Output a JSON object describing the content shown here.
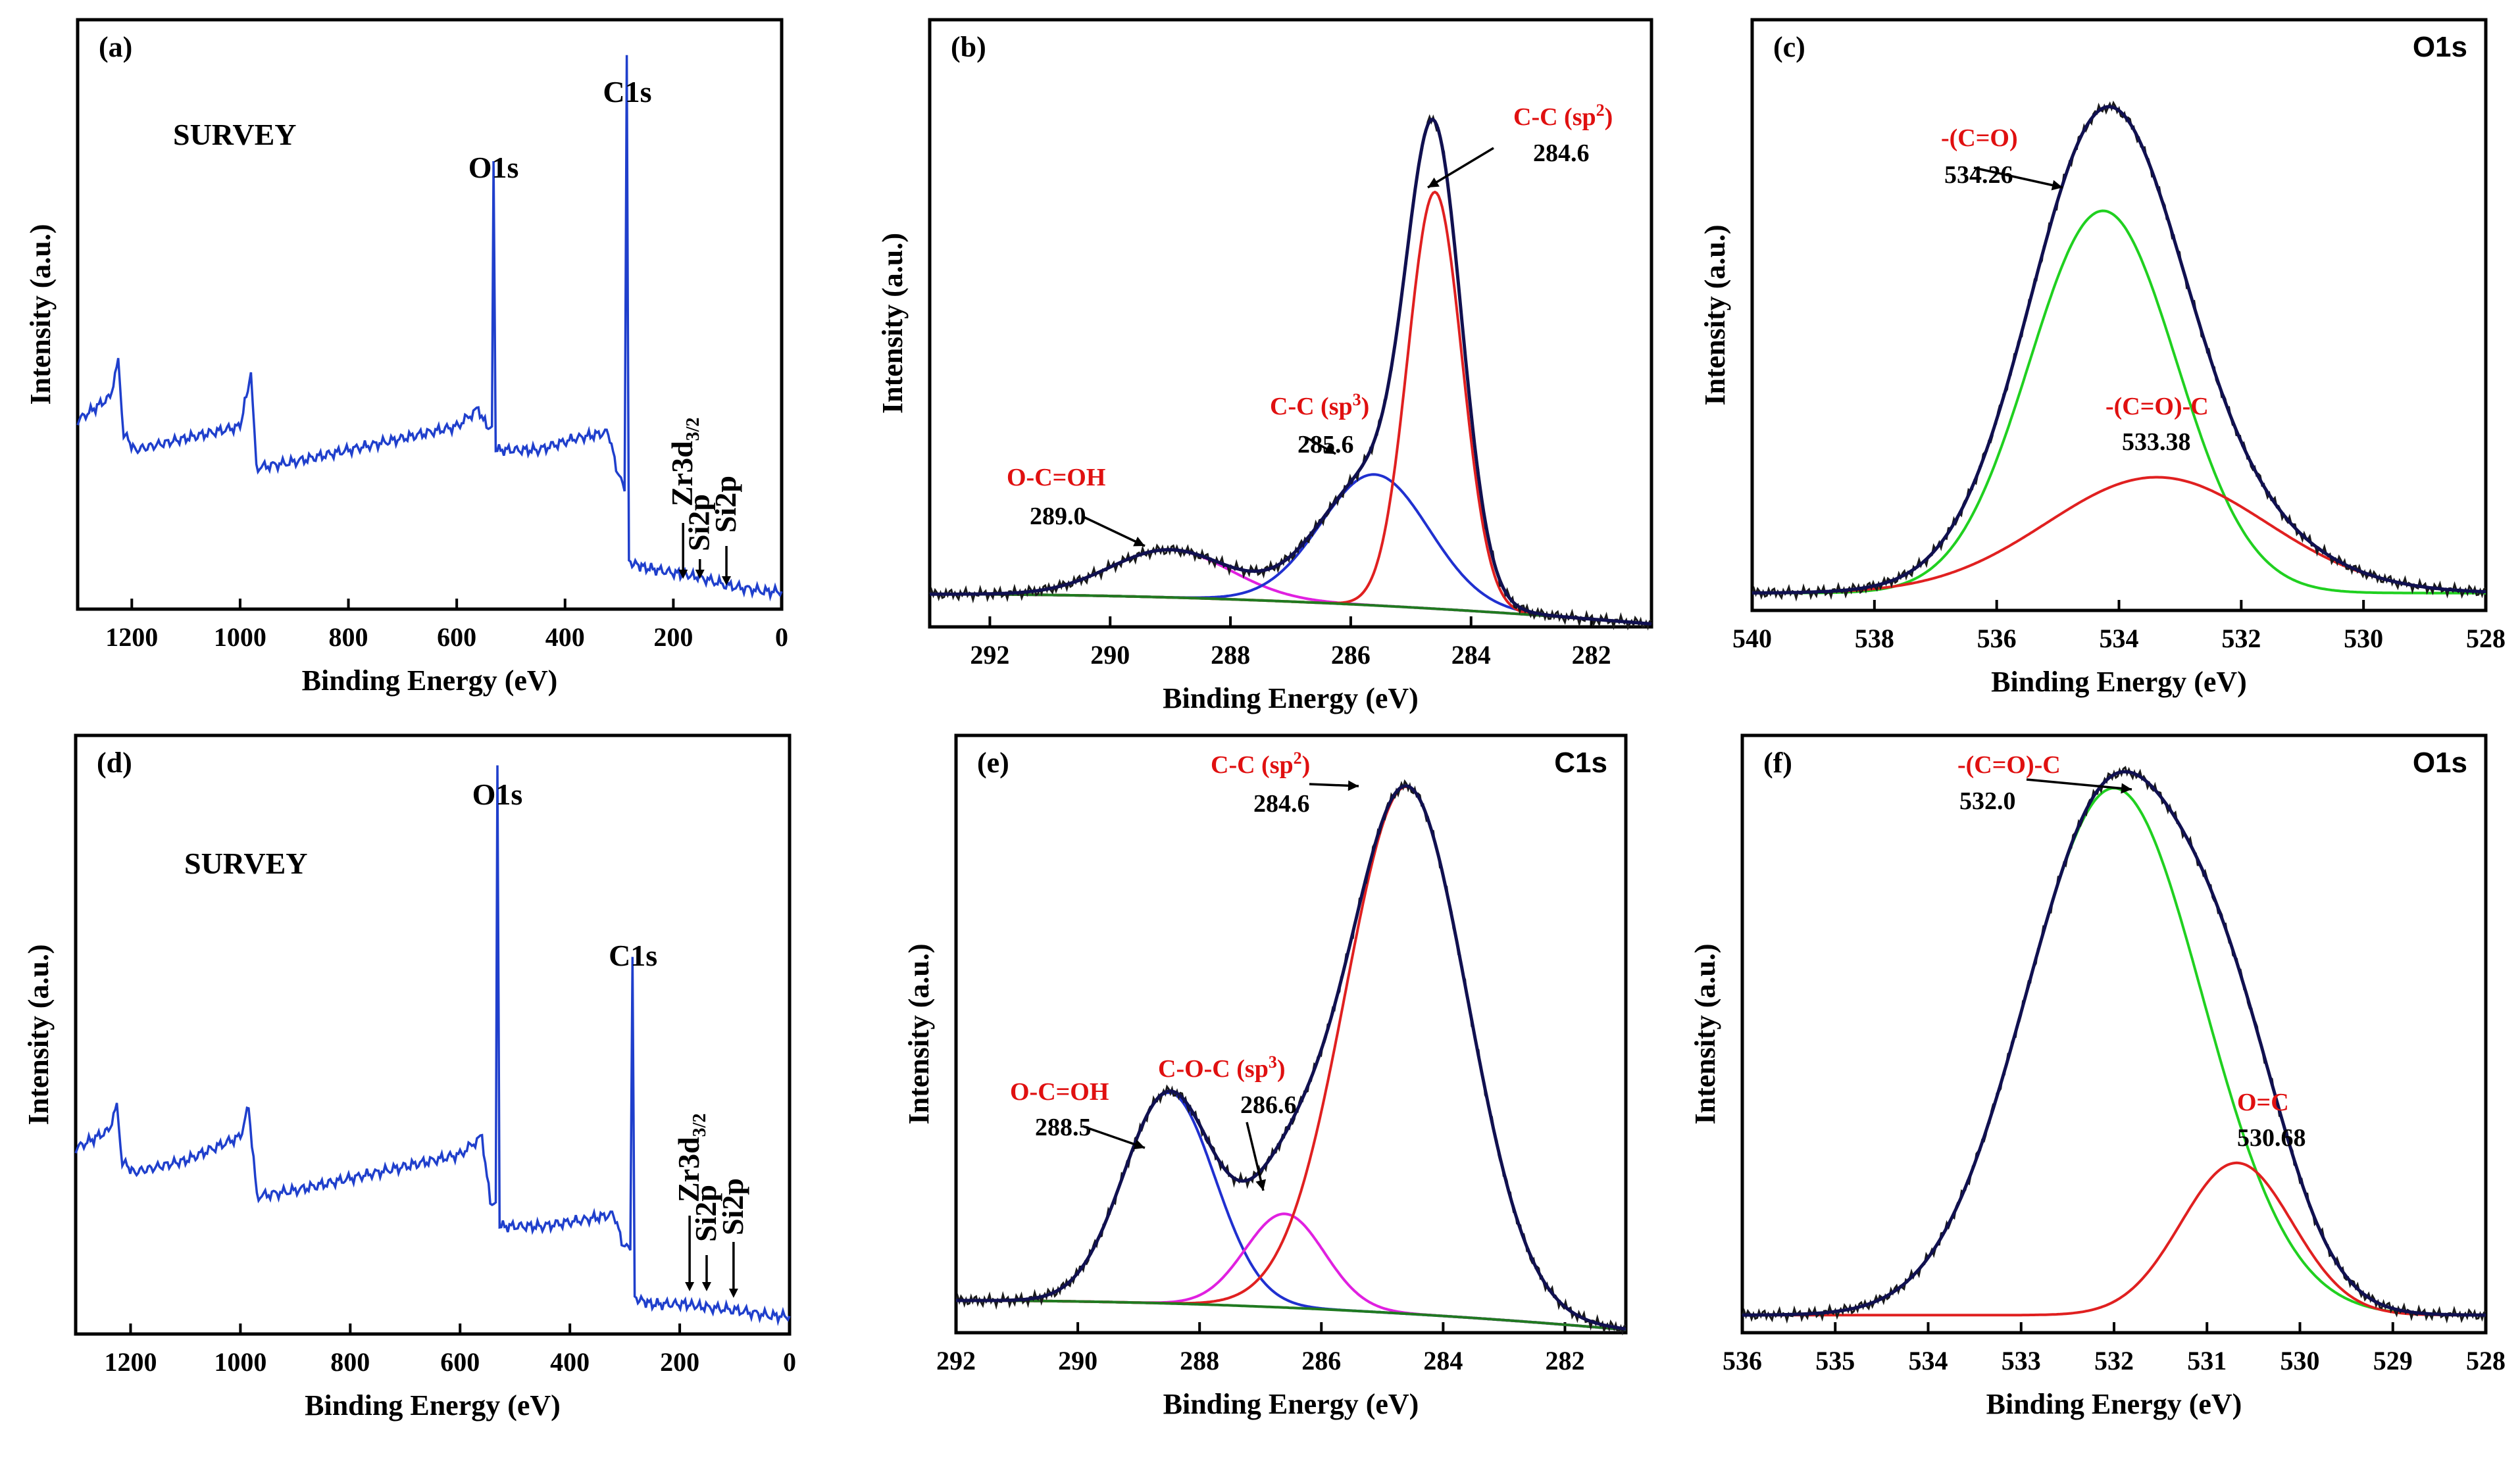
{
  "chart_data": [
    {
      "id": "a",
      "type": "line",
      "panel_label": "(a)",
      "title": "SURVEY",
      "xlabel": "Binding Energy (eV)",
      "ylabel": "Intensity (a.u.)",
      "xlim": [
        1300,
        0
      ],
      "xticks": [
        1200,
        1000,
        800,
        600,
        400,
        200,
        0
      ],
      "series": [
        {
          "name": "survey",
          "color": "#1f3fcc",
          "points": [
            [
              1300,
              0.32
            ],
            [
              1240,
              0.36
            ],
            [
              1225,
              0.42
            ],
            [
              1215,
              0.3
            ],
            [
              1195,
              0.27
            ],
            [
              1100,
              0.29
            ],
            [
              1000,
              0.31
            ],
            [
              980,
              0.4
            ],
            [
              970,
              0.24
            ],
            [
              900,
              0.25
            ],
            [
              800,
              0.27
            ],
            [
              700,
              0.29
            ],
            [
              600,
              0.31
            ],
            [
              560,
              0.34
            ],
            [
              545,
              0.31
            ],
            [
              535,
              0.31
            ],
            [
              532,
              0.76
            ],
            [
              528,
              0.27
            ],
            [
              450,
              0.27
            ],
            [
              380,
              0.29
            ],
            [
              320,
              0.3
            ],
            [
              300,
              0.22
            ],
            [
              290,
              0.2
            ],
            [
              286,
              0.94
            ],
            [
              282,
              0.08
            ],
            [
              250,
              0.07
            ],
            [
              190,
              0.06
            ],
            [
              155,
              0.055
            ],
            [
              100,
              0.04
            ],
            [
              30,
              0.03
            ],
            [
              0,
              0.03
            ]
          ]
        }
      ],
      "annotations": [
        {
          "text": "O1s",
          "x": 532
        },
        {
          "text": "C1s",
          "x": 285
        },
        {
          "text": "Zr3d",
          "sub": "3/2",
          "x": 182
        },
        {
          "text": "Si2p",
          "x": 151
        },
        {
          "text": "Si2p",
          "x": 102
        }
      ]
    },
    {
      "id": "b",
      "type": "line",
      "panel_label": "(b)",
      "title": "",
      "xlabel": "Binding Energy (eV)",
      "ylabel": "Intensity (a.u.)",
      "xlim": [
        293,
        281
      ],
      "xticks": [
        292,
        290,
        288,
        286,
        284,
        282
      ],
      "components": [
        {
          "name": "measured",
          "color": "#101050",
          "type": "envelope"
        },
        {
          "name": "O-C=OH",
          "center": 289.0,
          "amp": 0.08,
          "sigma": 1.0,
          "color": "#e020e0"
        },
        {
          "name": "C-C (sp3)",
          "center": 285.6,
          "amp": 0.22,
          "sigma": 0.9,
          "color": "#2030d0"
        },
        {
          "name": "C-C (sp2)",
          "center": 284.6,
          "amp": 0.7,
          "sigma": 0.45,
          "color": "#e02020"
        },
        {
          "name": "background",
          "color": "#207a20",
          "type": "background"
        }
      ],
      "annotations": [
        {
          "label": "C-C (sp",
          "sup": "2",
          "tail": ")",
          "value": "284.6"
        },
        {
          "label": "C-C (sp",
          "sup": "3",
          "tail": ")",
          "value": "285.6"
        },
        {
          "label": "O-C=OH",
          "value": "289.0"
        }
      ]
    },
    {
      "id": "c",
      "type": "line",
      "panel_label": "(c)",
      "title": "O1s",
      "xlabel": "Binding Energy (eV)",
      "ylabel": "Intensity (a.u.)",
      "xlim": [
        540,
        528
      ],
      "xticks": [
        540,
        538,
        536,
        534,
        532,
        530,
        528
      ],
      "components": [
        {
          "name": "measured",
          "color": "#101050",
          "type": "envelope"
        },
        {
          "name": "-(C=O)",
          "center": 534.26,
          "amp": 0.66,
          "sigma": 1.2,
          "color": "#20d020"
        },
        {
          "name": "-(C=O)-C",
          "center": 533.38,
          "amp": 0.2,
          "sigma": 1.8,
          "color": "#e02020"
        }
      ],
      "annotations": [
        {
          "label": "-(C=O)",
          "value": "534.26"
        },
        {
          "label": "-(C=O)-C",
          "value": "533.38"
        }
      ]
    },
    {
      "id": "d",
      "type": "line",
      "panel_label": "(d)",
      "title": "SURVEY",
      "xlabel": "Binding Energy (eV)",
      "ylabel": "Intensity (a.u.)",
      "xlim": [
        1300,
        0
      ],
      "xticks": [
        1200,
        1000,
        800,
        600,
        400,
        200,
        0
      ],
      "series": [
        {
          "name": "survey",
          "color": "#1f3fcc",
          "points": [
            [
              1300,
              0.31
            ],
            [
              1240,
              0.34
            ],
            [
              1225,
              0.38
            ],
            [
              1215,
              0.29
            ],
            [
              1195,
              0.27
            ],
            [
              1100,
              0.29
            ],
            [
              1000,
              0.33
            ],
            [
              985,
              0.38
            ],
            [
              970,
              0.23
            ],
            [
              900,
              0.24
            ],
            [
              800,
              0.26
            ],
            [
              700,
              0.28
            ],
            [
              600,
              0.3
            ],
            [
              560,
              0.33
            ],
            [
              545,
              0.22
            ],
            [
              535,
              0.22
            ],
            [
              532,
              0.95
            ],
            [
              528,
              0.18
            ],
            [
              450,
              0.18
            ],
            [
              380,
              0.19
            ],
            [
              320,
              0.2
            ],
            [
              300,
              0.14
            ],
            [
              290,
              0.14
            ],
            [
              286,
              0.63
            ],
            [
              282,
              0.06
            ],
            [
              250,
              0.05
            ],
            [
              190,
              0.05
            ],
            [
              155,
              0.045
            ],
            [
              100,
              0.04
            ],
            [
              30,
              0.03
            ],
            [
              0,
              0.03
            ]
          ]
        }
      ],
      "annotations": [
        {
          "text": "O1s",
          "x": 532
        },
        {
          "text": "C1s",
          "x": 285
        },
        {
          "text": "Zr3d",
          "sub": "3/2",
          "x": 182
        },
        {
          "text": "Si2p",
          "x": 151
        },
        {
          "text": "Si2p",
          "x": 102
        }
      ]
    },
    {
      "id": "e",
      "type": "line",
      "panel_label": "(e)",
      "title": "C1s",
      "xlabel": "Binding Energy (eV)",
      "ylabel": "Intensity (a.u.)",
      "xlim": [
        292,
        281
      ],
      "xticks": [
        292,
        290,
        288,
        286,
        284,
        282
      ],
      "components": [
        {
          "name": "measured",
          "color": "#101050",
          "type": "envelope"
        },
        {
          "name": "O-C=OH",
          "center": 288.5,
          "amp": 0.36,
          "sigma": 0.75,
          "color": "#2030d0"
        },
        {
          "name": "C-O-C (sp3)",
          "center": 286.6,
          "amp": 0.16,
          "sigma": 0.65,
          "color": "#e020e0"
        },
        {
          "name": "C-C (sp2)",
          "center": 284.6,
          "amp": 0.9,
          "sigma": 1.0,
          "color": "#e02020"
        },
        {
          "name": "background",
          "color": "#207a20",
          "type": "background"
        }
      ],
      "annotations": [
        {
          "label": "C-C (sp",
          "sup": "2",
          "tail": ")",
          "value": "284.6"
        },
        {
          "label": "C-O-C (sp",
          "sup": "3",
          "tail": ")",
          "value": "286.6"
        },
        {
          "label": "O-C=OH",
          "value": "288.5"
        }
      ]
    },
    {
      "id": "f",
      "type": "line",
      "panel_label": "(f)",
      "title": "O1s",
      "xlabel": "Binding Energy (eV)",
      "ylabel": "Intensity (a.u.)",
      "xlim": [
        536,
        528
      ],
      "xticks": [
        536,
        535,
        534,
        533,
        532,
        531,
        530,
        529,
        528
      ],
      "components": [
        {
          "name": "measured",
          "color": "#101050",
          "type": "envelope"
        },
        {
          "name": "-(C=O)-C",
          "center": 532.0,
          "amp": 0.9,
          "sigma": 0.95,
          "color": "#20d020"
        },
        {
          "name": "O=C",
          "center": 530.68,
          "amp": 0.26,
          "sigma": 0.6,
          "color": "#e02020"
        }
      ],
      "annotations": [
        {
          "label": "-(C=O)-C",
          "value": "532.0"
        },
        {
          "label": "O=C",
          "value": "530.68"
        }
      ]
    }
  ]
}
